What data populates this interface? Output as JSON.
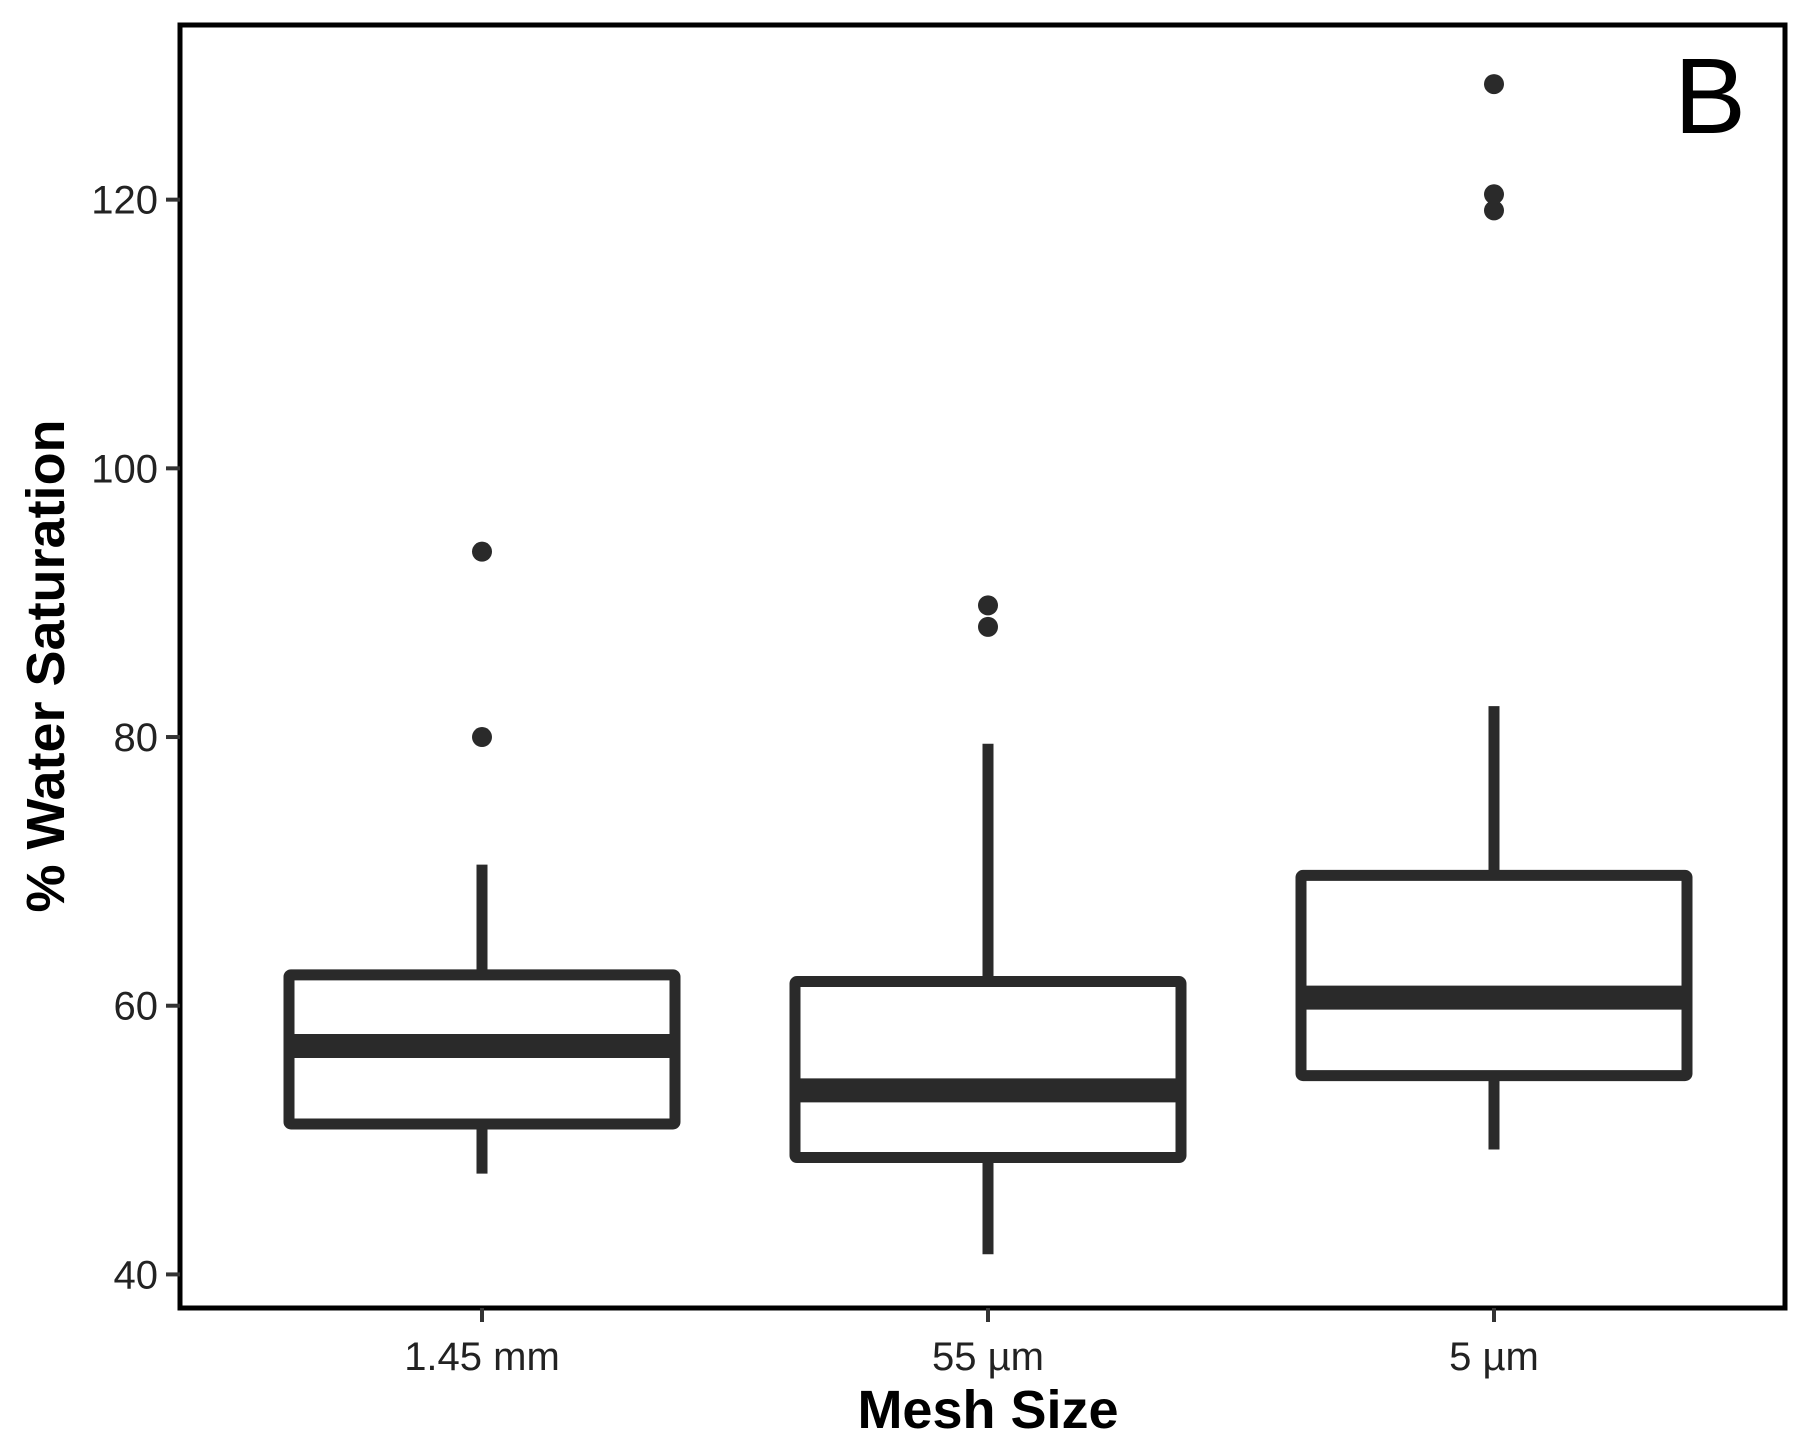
{
  "chart_data": {
    "type": "boxplot",
    "panel_label": "B",
    "xlabel": "Mesh Size",
    "ylabel": "% Water Saturation",
    "ylim": [
      37.5,
      133
    ],
    "yticks": [
      40,
      60,
      80,
      100,
      120
    ],
    "ytick_labels": [
      "40",
      "60",
      "80",
      "100",
      "120"
    ],
    "grid": false,
    "categories": [
      "1.45 mm",
      "55 µm",
      "5 µm"
    ],
    "boxes": [
      {
        "category": "1.45 mm",
        "whisker_low": 47.5,
        "q1": 51.2,
        "median": 57.0,
        "q3": 62.3,
        "whisker_high": 70.5,
        "outliers": [
          80.0,
          93.8
        ]
      },
      {
        "category": "55 µm",
        "whisker_low": 41.5,
        "q1": 48.7,
        "median": 53.7,
        "q3": 61.8,
        "whisker_high": 79.5,
        "outliers": [
          88.2,
          89.8
        ]
      },
      {
        "category": "5 µm",
        "whisker_low": 49.3,
        "q1": 54.8,
        "median": 60.6,
        "q3": 69.7,
        "whisker_high": 82.3,
        "outliers": [
          119.2,
          120.4,
          128.6
        ]
      }
    ],
    "colors": {
      "stroke": "#2a2a2a",
      "frame": "#000000",
      "background": "#ffffff"
    }
  }
}
